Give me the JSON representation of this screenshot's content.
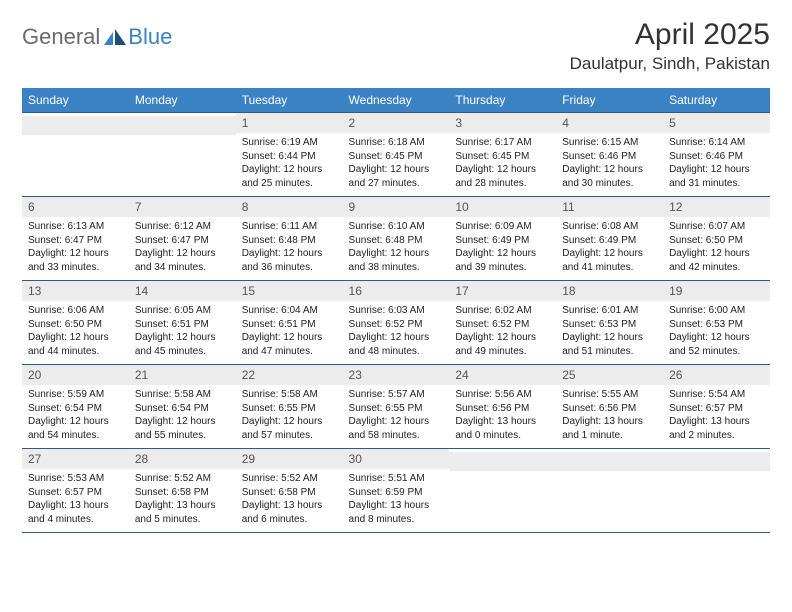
{
  "brand": {
    "part1": "General",
    "part2": "Blue"
  },
  "title": "April 2025",
  "location": "Daulatpur, Sindh, Pakistan",
  "colors": {
    "header_bg": "#3b82c4",
    "header_text": "#ffffff",
    "daynum_bg": "#ececec",
    "daynum_text": "#555555",
    "body_text": "#222222",
    "rule": "#2c5b86",
    "logo_gray": "#6b6b6b",
    "logo_blue": "#3b82c4"
  },
  "weekdays": [
    "Sunday",
    "Monday",
    "Tuesday",
    "Wednesday",
    "Thursday",
    "Friday",
    "Saturday"
  ],
  "layout": {
    "first_weekday_index": 2,
    "days_in_month": 30
  },
  "days": [
    {
      "n": 1,
      "sunrise": "6:19 AM",
      "sunset": "6:44 PM",
      "daylight": "12 hours and 25 minutes."
    },
    {
      "n": 2,
      "sunrise": "6:18 AM",
      "sunset": "6:45 PM",
      "daylight": "12 hours and 27 minutes."
    },
    {
      "n": 3,
      "sunrise": "6:17 AM",
      "sunset": "6:45 PM",
      "daylight": "12 hours and 28 minutes."
    },
    {
      "n": 4,
      "sunrise": "6:15 AM",
      "sunset": "6:46 PM",
      "daylight": "12 hours and 30 minutes."
    },
    {
      "n": 5,
      "sunrise": "6:14 AM",
      "sunset": "6:46 PM",
      "daylight": "12 hours and 31 minutes."
    },
    {
      "n": 6,
      "sunrise": "6:13 AM",
      "sunset": "6:47 PM",
      "daylight": "12 hours and 33 minutes."
    },
    {
      "n": 7,
      "sunrise": "6:12 AM",
      "sunset": "6:47 PM",
      "daylight": "12 hours and 34 minutes."
    },
    {
      "n": 8,
      "sunrise": "6:11 AM",
      "sunset": "6:48 PM",
      "daylight": "12 hours and 36 minutes."
    },
    {
      "n": 9,
      "sunrise": "6:10 AM",
      "sunset": "6:48 PM",
      "daylight": "12 hours and 38 minutes."
    },
    {
      "n": 10,
      "sunrise": "6:09 AM",
      "sunset": "6:49 PM",
      "daylight": "12 hours and 39 minutes."
    },
    {
      "n": 11,
      "sunrise": "6:08 AM",
      "sunset": "6:49 PM",
      "daylight": "12 hours and 41 minutes."
    },
    {
      "n": 12,
      "sunrise": "6:07 AM",
      "sunset": "6:50 PM",
      "daylight": "12 hours and 42 minutes."
    },
    {
      "n": 13,
      "sunrise": "6:06 AM",
      "sunset": "6:50 PM",
      "daylight": "12 hours and 44 minutes."
    },
    {
      "n": 14,
      "sunrise": "6:05 AM",
      "sunset": "6:51 PM",
      "daylight": "12 hours and 45 minutes."
    },
    {
      "n": 15,
      "sunrise": "6:04 AM",
      "sunset": "6:51 PM",
      "daylight": "12 hours and 47 minutes."
    },
    {
      "n": 16,
      "sunrise": "6:03 AM",
      "sunset": "6:52 PM",
      "daylight": "12 hours and 48 minutes."
    },
    {
      "n": 17,
      "sunrise": "6:02 AM",
      "sunset": "6:52 PM",
      "daylight": "12 hours and 49 minutes."
    },
    {
      "n": 18,
      "sunrise": "6:01 AM",
      "sunset": "6:53 PM",
      "daylight": "12 hours and 51 minutes."
    },
    {
      "n": 19,
      "sunrise": "6:00 AM",
      "sunset": "6:53 PM",
      "daylight": "12 hours and 52 minutes."
    },
    {
      "n": 20,
      "sunrise": "5:59 AM",
      "sunset": "6:54 PM",
      "daylight": "12 hours and 54 minutes."
    },
    {
      "n": 21,
      "sunrise": "5:58 AM",
      "sunset": "6:54 PM",
      "daylight": "12 hours and 55 minutes."
    },
    {
      "n": 22,
      "sunrise": "5:58 AM",
      "sunset": "6:55 PM",
      "daylight": "12 hours and 57 minutes."
    },
    {
      "n": 23,
      "sunrise": "5:57 AM",
      "sunset": "6:55 PM",
      "daylight": "12 hours and 58 minutes."
    },
    {
      "n": 24,
      "sunrise": "5:56 AM",
      "sunset": "6:56 PM",
      "daylight": "13 hours and 0 minutes."
    },
    {
      "n": 25,
      "sunrise": "5:55 AM",
      "sunset": "6:56 PM",
      "daylight": "13 hours and 1 minute."
    },
    {
      "n": 26,
      "sunrise": "5:54 AM",
      "sunset": "6:57 PM",
      "daylight": "13 hours and 2 minutes."
    },
    {
      "n": 27,
      "sunrise": "5:53 AM",
      "sunset": "6:57 PM",
      "daylight": "13 hours and 4 minutes."
    },
    {
      "n": 28,
      "sunrise": "5:52 AM",
      "sunset": "6:58 PM",
      "daylight": "13 hours and 5 minutes."
    },
    {
      "n": 29,
      "sunrise": "5:52 AM",
      "sunset": "6:58 PM",
      "daylight": "13 hours and 6 minutes."
    },
    {
      "n": 30,
      "sunrise": "5:51 AM",
      "sunset": "6:59 PM",
      "daylight": "13 hours and 8 minutes."
    }
  ]
}
